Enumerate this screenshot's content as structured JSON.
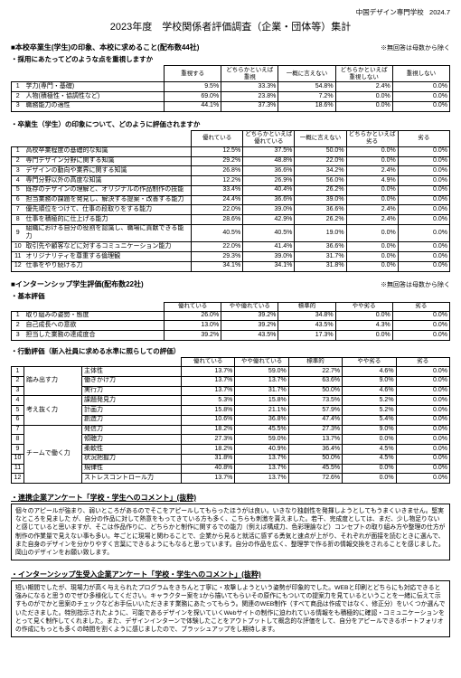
{
  "header": {
    "school": "中国デザイン専門学校",
    "date": "2024.7"
  },
  "title": "2023年度　学校関係者評価調査（企業・団体等）集計",
  "note_excl": "※無回答は母数から除く",
  "sec1": {
    "title": "■本校卒業生(学生)の印象、本校に求めること(配布数44社)",
    "sub": "・採用にあたってどのような点を重視しますか",
    "hdr": [
      "重視する",
      "どちらかといえば重視",
      "一概に言えない",
      "どちらかといえば重視しない",
      "重視しない"
    ],
    "rows": [
      {
        "n": "1",
        "l": "学力(専門・基礎)",
        "v": [
          "9.5%",
          "33.3%",
          "54.8%",
          "2.4%",
          "0.0%"
        ]
      },
      {
        "n": "2",
        "l": "人物(積極性・協調性など)",
        "v": [
          "69.0%",
          "23.8%",
          "7.2%",
          "0.0%",
          "0.0%"
        ]
      },
      {
        "n": "3",
        "l": "職務能力の適性",
        "v": [
          "44.1%",
          "37.3%",
          "18.6%",
          "0.0%",
          "0.0%"
        ]
      }
    ]
  },
  "sec2": {
    "sub": "・卒業生（学生）の印象について、どのように評価されますか",
    "hdr": [
      "優れている",
      "どちらかといえば優れている",
      "一概に言えない",
      "どちらかといえば劣る",
      "劣る"
    ],
    "rows": [
      {
        "n": "1",
        "l": "高校卒業程度の基礎的な知識",
        "v": [
          "12.5%",
          "37.5%",
          "50.0%",
          "0.0%",
          "0.0%"
        ]
      },
      {
        "n": "2",
        "l": "専門デザイン分野に関する知識",
        "v": [
          "29.2%",
          "48.8%",
          "22.0%",
          "0.0%",
          "0.0%"
        ]
      },
      {
        "n": "3",
        "l": "デザインの動向や業界に関する知識",
        "v": [
          "26.8%",
          "36.6%",
          "34.2%",
          "2.4%",
          "0.0%"
        ]
      },
      {
        "n": "4",
        "l": "専門分野以外の高度な知識",
        "v": [
          "12.2%",
          "26.9%",
          "56.0%",
          "4.9%",
          "0.0%"
        ]
      },
      {
        "n": "5",
        "l": "既存のデザインの理解と、オリジナルの作品制作の技能",
        "v": [
          "33.4%",
          "40.4%",
          "26.2%",
          "0.0%",
          "0.0%"
        ]
      },
      {
        "n": "6",
        "l": "担当業務の課題を発見し、解決する提案・改善する能力",
        "v": [
          "24.4%",
          "36.6%",
          "39.0%",
          "0.0%",
          "0.0%"
        ]
      },
      {
        "n": "7",
        "l": "優先順位をつけて、仕事の段取りをする能力",
        "v": [
          "22.0%",
          "39.0%",
          "36.6%",
          "2.4%",
          "0.0%"
        ]
      },
      {
        "n": "8",
        "l": "仕事を積極的に仕上げる能力",
        "v": [
          "28.6%",
          "42.9%",
          "26.2%",
          "2.4%",
          "0.0%"
        ]
      },
      {
        "n": "9",
        "l": "組織における自分の役割を認識し、職場に貢献できる能力",
        "v": [
          "40.5%",
          "40.5%",
          "19.0%",
          "0.0%",
          "0.0%"
        ]
      },
      {
        "n": "10",
        "l": "取引先や顧客などに対するコミュニケーション能力",
        "v": [
          "22.0%",
          "41.4%",
          "36.6%",
          "0.0%",
          "0.0%"
        ]
      },
      {
        "n": "11",
        "l": "オリジナリティを尊重する倫理観",
        "v": [
          "29.3%",
          "39.0%",
          "31.7%",
          "0.0%",
          "0.0%"
        ]
      },
      {
        "n": "12",
        "l": "仕事をやり続ける力",
        "v": [
          "34.1%",
          "34.1%",
          "31.8%",
          "0.0%",
          "0.0%"
        ]
      }
    ]
  },
  "sec3": {
    "title": "■インターンシップ学生評価(配布数22社)",
    "sub": "・基本評価",
    "hdr": [
      "優れている",
      "やや優れている",
      "標準的",
      "やや劣る",
      "劣る"
    ],
    "rows": [
      {
        "n": "1",
        "l": "取り組みの姿勢・態度",
        "v": [
          "26.0%",
          "39.2%",
          "34.8%",
          "0.0%",
          "0.0%"
        ]
      },
      {
        "n": "2",
        "l": "自己成長への意欲",
        "v": [
          "13.0%",
          "39.2%",
          "43.5%",
          "4.3%",
          "0.0%"
        ]
      },
      {
        "n": "3",
        "l": "担当した業務の達成度合",
        "v": [
          "39.2%",
          "43.5%",
          "17.3%",
          "0.0%",
          "0.0%"
        ]
      }
    ]
  },
  "sec4": {
    "sub": "・行動評価（新入社員に求める水準に照らしての評価）",
    "hdr": [
      "優れている",
      "やや優れている",
      "標準的",
      "やや劣る",
      "劣る"
    ],
    "groups": [
      {
        "g": "踏み出す力",
        "rows": [
          {
            "n": "1",
            "l": "主体性",
            "v": [
              "13.7%",
              "59.0%",
              "22.7%",
              "4.6%",
              "0.0%"
            ]
          },
          {
            "n": "2",
            "l": "働きかけ力",
            "v": [
              "13.7%",
              "13.7%",
              "63.6%",
              "9.0%",
              "0.0%"
            ]
          },
          {
            "n": "3",
            "l": "実行力",
            "v": [
              "13.7%",
              "31.7%",
              "50.0%",
              "4.6%",
              "0.0%"
            ]
          }
        ]
      },
      {
        "g": "考え抜く力",
        "rows": [
          {
            "n": "4",
            "l": "課題発見力",
            "v": [
              "5.3%",
              "15.8%",
              "73.5%",
              "5.2%",
              "0.0%"
            ]
          },
          {
            "n": "5",
            "l": "計画力",
            "v": [
              "15.8%",
              "21.1%",
              "57.9%",
              "5.2%",
              "0.0%"
            ]
          },
          {
            "n": "6",
            "l": "創造力",
            "v": [
              "10.6%",
              "36.8%",
              "47.4%",
              "5.4%",
              "0.0%"
            ]
          }
        ]
      },
      {
        "g": "チームで働く力",
        "rows": [
          {
            "n": "7",
            "l": "発信力",
            "v": [
              "18.2%",
              "45.5%",
              "27.3%",
              "9.0%",
              "0.0%"
            ]
          },
          {
            "n": "8",
            "l": "傾聴力",
            "v": [
              "27.3%",
              "59.0%",
              "13.7%",
              "0.0%",
              "0.0%"
            ]
          },
          {
            "n": "9",
            "l": "柔軟性",
            "v": [
              "18.2%",
              "40.9%",
              "36.4%",
              "4.5%",
              "0.0%"
            ]
          },
          {
            "n": "10",
            "l": "状況把握力",
            "v": [
              "31.8%",
              "13.7%",
              "50.0%",
              "4.5%",
              "0.0%"
            ]
          },
          {
            "n": "11",
            "l": "規律性",
            "v": [
              "40.8%",
              "13.7%",
              "45.5%",
              "0.0%",
              "0.0%"
            ]
          },
          {
            "n": "12",
            "l": "ストレスコントロール力",
            "v": [
              "13.7%",
              "13.7%",
              "72.6%",
              "0.0%",
              "0.0%"
            ]
          }
        ]
      }
    ]
  },
  "comments1": {
    "title": "・連携企業アンケート「学校・学生へのコメント」(抜粋)",
    "body": "個々のアピールが強まり、弱いところがあるのでそこをアピールしてもらったほうがは良い。いきなり独創性を発揮しようとしてもうまくいきません。堅実なところを見ました が、自分の作品に対して熱意をもってきている方も多く、こちらも刺激を貰えました。若干、完成度としては、まだ、少し物足りないと感じていると思いますが、そこは作品作りに、どちらかと制作に関するでの能力（例えば構成力、色彩理論など）コンセプトの取り組み方や整理の仕方が制作の作業量で見えない事も多い。年ごとに現場と関わることで、企業から見ると就活に感ずる勇気と速点が上がり、それぞれが面接を読むときに選んで、また自身のデザインを分かりやすく言葉にできるようにもなると思っています。自分の作品を広く、整理学で作る折の情報交換をされることを感じました。岡山のデザインをお願い致します。"
  },
  "comments2": {
    "title": "・インターンシップ生受入企業アンケート「学校・学生へのコメント」(抜粋)",
    "body": "短い期間でしたが、現場力が高く与えられたプログラムをきちんと丁寧に・攻撃しようという姿勢が印象的でした。WEBと印刷とどちらにも対応できると強みになると思うのでぜひ多様化してください。キャラクター案を1から描いてもらいその原作にもついての提案力を見ているということを一緒に伝えて示すものがでかと思案のチェックなどお手伝いいただきます業務にあたってもらう。関連のWEB制作（すべて商品は作成ではなく、修正分）をいくつか選んでいただきました。特別指示されたように、可能であるデザインを探いていくWebサイトの制作に迫われている情報をも積極的に確認・コミュニケーションをとって見く制作してくれました。また、デザインインターンで体験したことをアウトプットして概念的な評価をして、自分をアピールできるポートフォリオの作成にもっとも多くの時間を割くように感じましたので、ブラッシュアップをし期待します。"
  }
}
